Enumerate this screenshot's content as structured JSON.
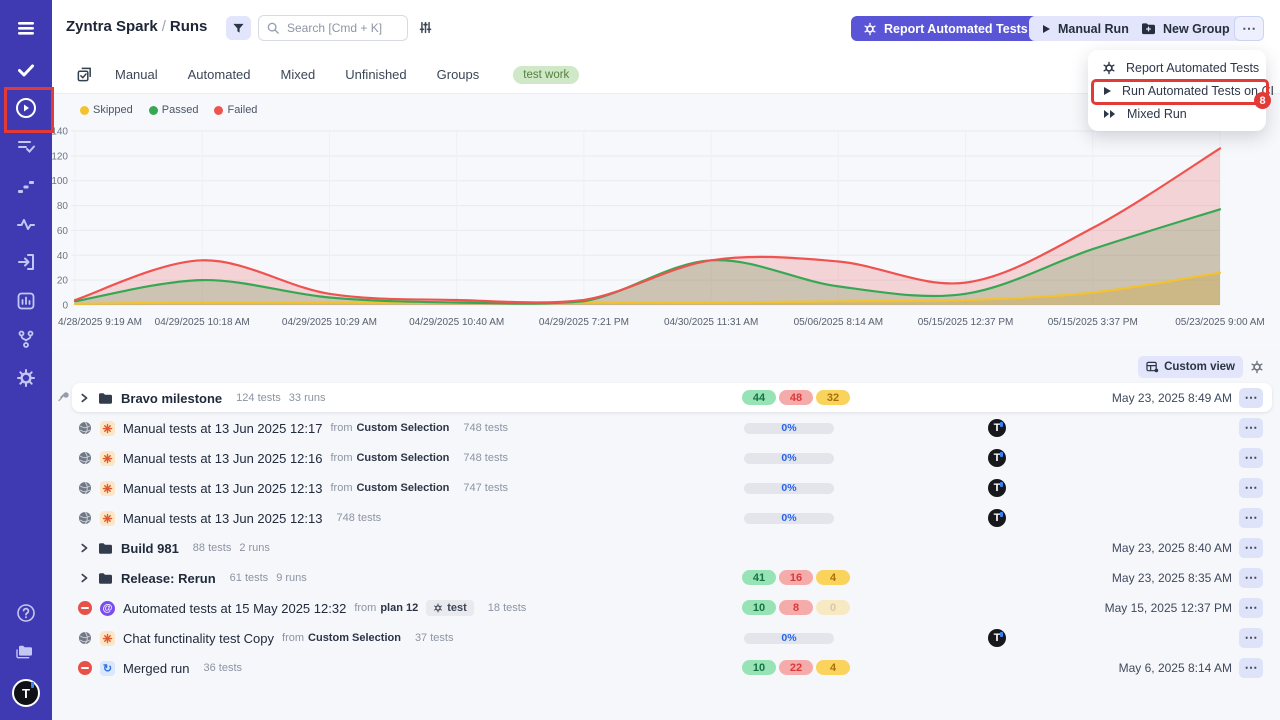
{
  "header": {
    "project": "Zyntra Spark",
    "separator": "/",
    "page": "Runs",
    "search_placeholder": "Search [Cmd + K]",
    "report_button": "Report Automated Tests",
    "manual_run_button": "Manual Run",
    "new_group_button": "New Group",
    "more_icon": "⋯"
  },
  "sidebar": {
    "icons": [
      "menu-icon",
      "check-icon",
      "play-circle-icon",
      "list-check-icon",
      "steps-icon",
      "pulse-icon",
      "import-icon",
      "analytics-icon",
      "branch-icon",
      "gear-icon",
      "help-icon",
      "projects-icon",
      "logo-t"
    ],
    "logo_letter": "T"
  },
  "tabs": [
    "Manual",
    "Automated",
    "Mixed",
    "Unfinished",
    "Groups"
  ],
  "tag_badge": "test work",
  "menu": {
    "items": [
      {
        "label": "Report Automated Tests",
        "icon": "gear-icon"
      },
      {
        "label": "Run Automated Tests on CI",
        "icon": "play-icon"
      },
      {
        "label": "Mixed Run",
        "icon": "double-play-icon"
      }
    ]
  },
  "annotations": {
    "menu_badge": "8",
    "highlight_color": "#e23a36"
  },
  "toolbar": {
    "custom_view": "Custom view"
  },
  "strings": {
    "from": "from",
    "more": "⋯"
  },
  "chart_data": {
    "type": "area",
    "title": "",
    "xlabel": "",
    "ylabel": "",
    "x": [
      "4/28/2025 9:19 AM",
      "04/29/2025 10:18 AM",
      "04/29/2025 10:29 AM",
      "04/29/2025 10:40 AM",
      "04/29/2025 7:21 PM",
      "04/30/2025 11:31 AM",
      "05/06/2025 8:14 AM",
      "05/15/2025 12:37 PM",
      "05/15/2025 3:37 PM",
      "05/23/2025 9:00 AM"
    ],
    "series": [
      {
        "name": "Skipped",
        "color": "#f2c230",
        "values": [
          1,
          2,
          2,
          2,
          2,
          2,
          3,
          4,
          10,
          26
        ]
      },
      {
        "name": "Passed",
        "color": "#36a853",
        "values": [
          3,
          20,
          6,
          2,
          3,
          36,
          15,
          9,
          45,
          77
        ]
      },
      {
        "name": "Failed",
        "color": "#ef5350",
        "values": [
          4,
          36,
          9,
          4,
          4,
          36,
          35,
          18,
          62,
          126
        ]
      }
    ],
    "ylim": [
      0,
      140
    ],
    "yticks": [
      0,
      20,
      40,
      60,
      80,
      100,
      120,
      140
    ],
    "grid": true,
    "legend_position": "top-left"
  },
  "rows": [
    {
      "kind": "group",
      "pinned": true,
      "highlight": true,
      "icon": "folder-icon",
      "title": "Bravo milestone",
      "tests": "124 tests",
      "runs": "33 runs",
      "badges": {
        "passed": "44",
        "failed": "48",
        "skipped": "32"
      },
      "date": "May 23, 2025 8:49 AM"
    },
    {
      "kind": "run",
      "status": "globe-icon",
      "icon": "manual-spark-icon",
      "title": "Manual tests at 13 Jun 2025 12:17",
      "from": "Custom Selection",
      "tests": "748 tests",
      "progress": "0%",
      "avatar": "T"
    },
    {
      "kind": "run",
      "status": "globe-icon",
      "icon": "manual-spark-icon",
      "title": "Manual tests at 13 Jun 2025 12:16",
      "from": "Custom Selection",
      "tests": "748 tests",
      "progress": "0%",
      "avatar": "T"
    },
    {
      "kind": "run",
      "status": "globe-icon",
      "icon": "manual-spark-icon",
      "title": "Manual tests at 13 Jun 2025 12:13",
      "from": "Custom Selection",
      "tests": "747 tests",
      "progress": "0%",
      "avatar": "T"
    },
    {
      "kind": "run",
      "status": "globe-icon",
      "icon": "manual-spark-icon",
      "title": "Manual tests at 13 Jun 2025 12:13",
      "tests": "748 tests",
      "progress": "0%",
      "avatar": "T"
    },
    {
      "kind": "group",
      "icon": "folder-icon",
      "title": "Build 981",
      "tests": "88 tests",
      "runs": "2 runs",
      "date": "May 23, 2025 8:40 AM"
    },
    {
      "kind": "group",
      "icon": "folder-icon",
      "title": "Release: Rerun",
      "tests": "61 tests",
      "runs": "9 runs",
      "badges": {
        "passed": "41",
        "failed": "16",
        "skipped": "4"
      },
      "date": "May 23, 2025 8:35 AM"
    },
    {
      "kind": "run",
      "status": "blocked-icon",
      "icon": "automated-icon",
      "title": "Automated tests at 15 May 2025 12:32",
      "from": "plan 12",
      "tag": "test",
      "tests": "18 tests",
      "badges": {
        "passed": "10",
        "failed": "8",
        "skipped": "0",
        "skipped_faded": true
      },
      "date": "May 15, 2025 12:37 PM"
    },
    {
      "kind": "run",
      "status": "globe-icon",
      "icon": "manual-spark-icon",
      "title": "Chat functinality test Copy",
      "from": "Custom Selection",
      "tests": "37 tests",
      "progress": "0%",
      "avatar": "T"
    },
    {
      "kind": "run",
      "status": "blocked-icon",
      "icon": "merged-icon",
      "title": "Merged run",
      "tests": "36 tests",
      "badges": {
        "passed": "10",
        "failed": "22",
        "skipped": "4"
      },
      "date": "May 6, 2025 8:14 AM"
    }
  ]
}
